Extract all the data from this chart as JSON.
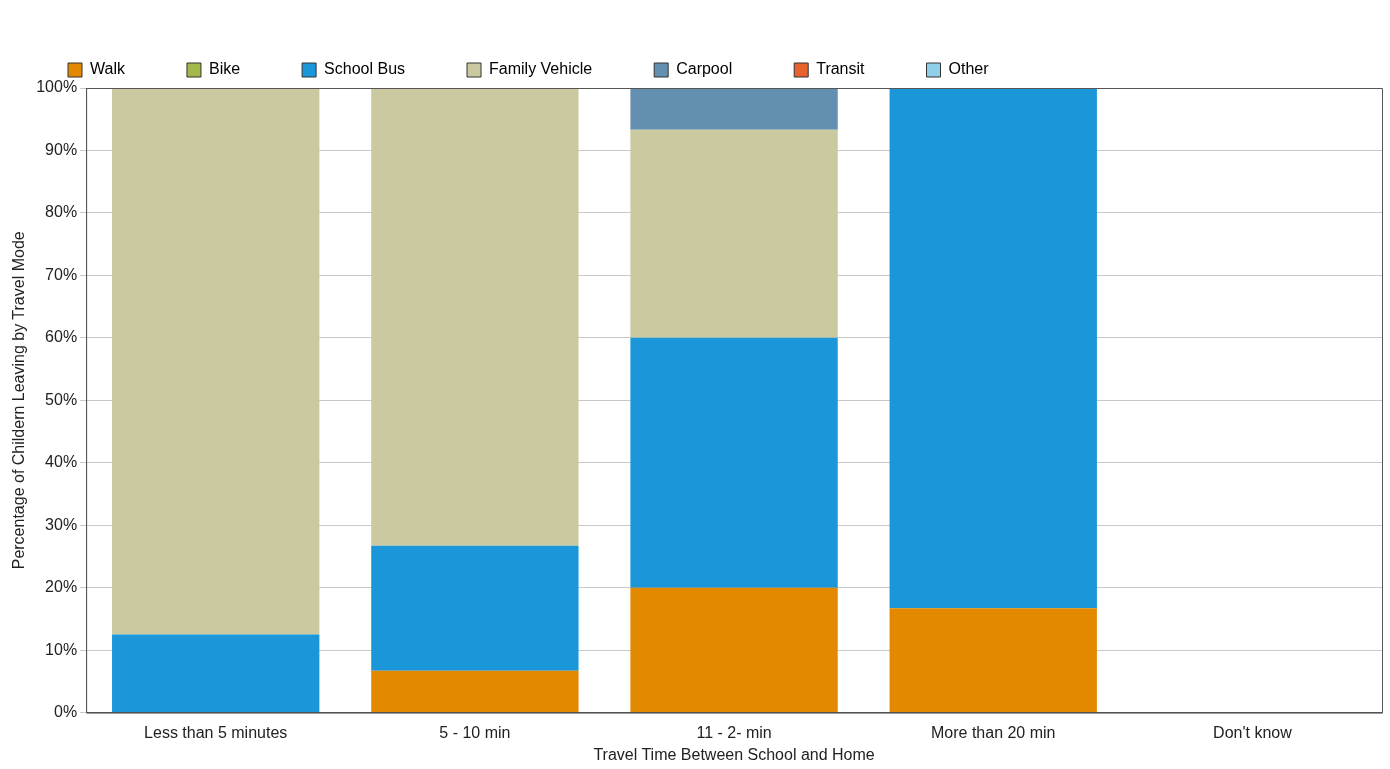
{
  "chart_data": {
    "type": "bar",
    "stacked": true,
    "xlabel": "Travel Time Between School and Home",
    "ylabel": "Percentage of Childern Leaving by Travel Mode",
    "categories": [
      "Less than 5 minutes",
      "5 - 10 min",
      "11 - 2- min",
      "More than 20 min",
      "Don't know"
    ],
    "series": [
      {
        "name": "Walk",
        "color": "#e38900",
        "values": [
          0,
          6.7,
          20,
          16.7,
          0
        ]
      },
      {
        "name": "Bike",
        "color": "#a3b84b",
        "values": [
          0,
          0,
          0,
          0,
          0
        ]
      },
      {
        "name": "School Bus",
        "color": "#1b96d9",
        "values": [
          12.5,
          20,
          40,
          83.3,
          0
        ]
      },
      {
        "name": "Family Vehicle",
        "color": "#cbc99f",
        "values": [
          87.5,
          73.3,
          33.3,
          0,
          0
        ]
      },
      {
        "name": "Carpool",
        "color": "#6390b0",
        "values": [
          0,
          0,
          6.7,
          0,
          0
        ]
      },
      {
        "name": "Transit",
        "color": "#e8622c",
        "values": [
          0,
          0,
          0,
          0,
          0
        ]
      },
      {
        "name": "Other",
        "color": "#8fd0e8",
        "values": [
          0,
          0,
          0,
          0,
          0
        ]
      }
    ],
    "ylim": [
      0,
      100
    ],
    "yticks": [
      {
        "value": 0,
        "label": "0%"
      },
      {
        "value": 10,
        "label": "10%"
      },
      {
        "value": 20,
        "label": "20%"
      },
      {
        "value": 30,
        "label": "30%"
      },
      {
        "value": 40,
        "label": "40%"
      },
      {
        "value": 50,
        "label": "50%"
      },
      {
        "value": 60,
        "label": "60%"
      },
      {
        "value": 70,
        "label": "70%"
      },
      {
        "value": 80,
        "label": "80%"
      },
      {
        "value": 90,
        "label": "90%"
      },
      {
        "value": 100,
        "label": "100%"
      }
    ],
    "grid": "y",
    "legend": "top"
  }
}
